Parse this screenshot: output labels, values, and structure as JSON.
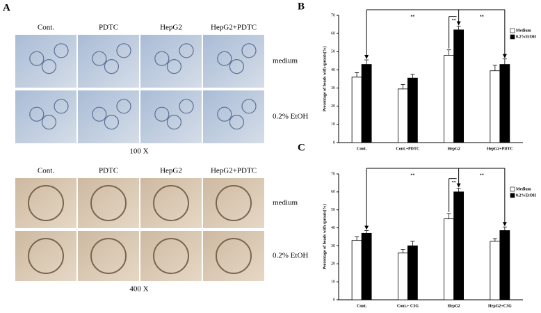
{
  "panel_a": {
    "label": "A",
    "top": {
      "columns": [
        "Cont.",
        "PDTC",
        "HepG2",
        "HepG2+PDTC"
      ],
      "rows": [
        "medium",
        "0.2% EtOH"
      ],
      "magnification": "100 X"
    },
    "bottom": {
      "columns": [
        "Cont.",
        "PDTC",
        "HepG2",
        "HepG2+PDTC"
      ],
      "rows": [
        "medium",
        "0.2% EtOH"
      ],
      "magnification": "400 X"
    }
  },
  "chart_data": [
    {
      "type": "bar",
      "panel": "B",
      "ylabel": "Percentage of beads with sprouts(%)",
      "categories": [
        "Cont.",
        "Cont.+PDTC",
        "HepG2",
        "HepG2+PDTC"
      ],
      "series": [
        {
          "name": "Medium",
          "color": "#ffffff",
          "values": [
            36,
            29.5,
            48,
            39.5
          ],
          "errors": [
            2.5,
            2.5,
            3,
            3
          ]
        },
        {
          "name": "0.2%EtOH",
          "color": "#000000",
          "values": [
            43,
            35.5,
            62,
            43
          ],
          "errors": [
            2.5,
            2,
            2,
            3
          ]
        }
      ],
      "ylim": [
        0,
        70
      ],
      "yticks": [
        0,
        10,
        20,
        30,
        40,
        50,
        60,
        70
      ],
      "annotations": [
        "**",
        "**",
        "**"
      ]
    },
    {
      "type": "bar",
      "panel": "C",
      "ylabel": "Percentage of beads with sprouts(%)",
      "categories": [
        "Cont.",
        "Cont.+ C3G",
        "HepG2",
        "HepG2+C3G"
      ],
      "series": [
        {
          "name": "Medium",
          "color": "#ffffff",
          "values": [
            33,
            26,
            45,
            32.5
          ],
          "errors": [
            2,
            2,
            3,
            1.5
          ]
        },
        {
          "name": "0.2%EtOH",
          "color": "#000000",
          "values": [
            37,
            30,
            60,
            38.5
          ],
          "errors": [
            1.5,
            2.5,
            2,
            2
          ]
        }
      ],
      "ylim": [
        0,
        70
      ],
      "yticks": [
        0,
        10,
        20,
        30,
        40,
        50,
        60,
        70
      ],
      "annotations": [
        "**",
        "**",
        "**"
      ]
    }
  ]
}
